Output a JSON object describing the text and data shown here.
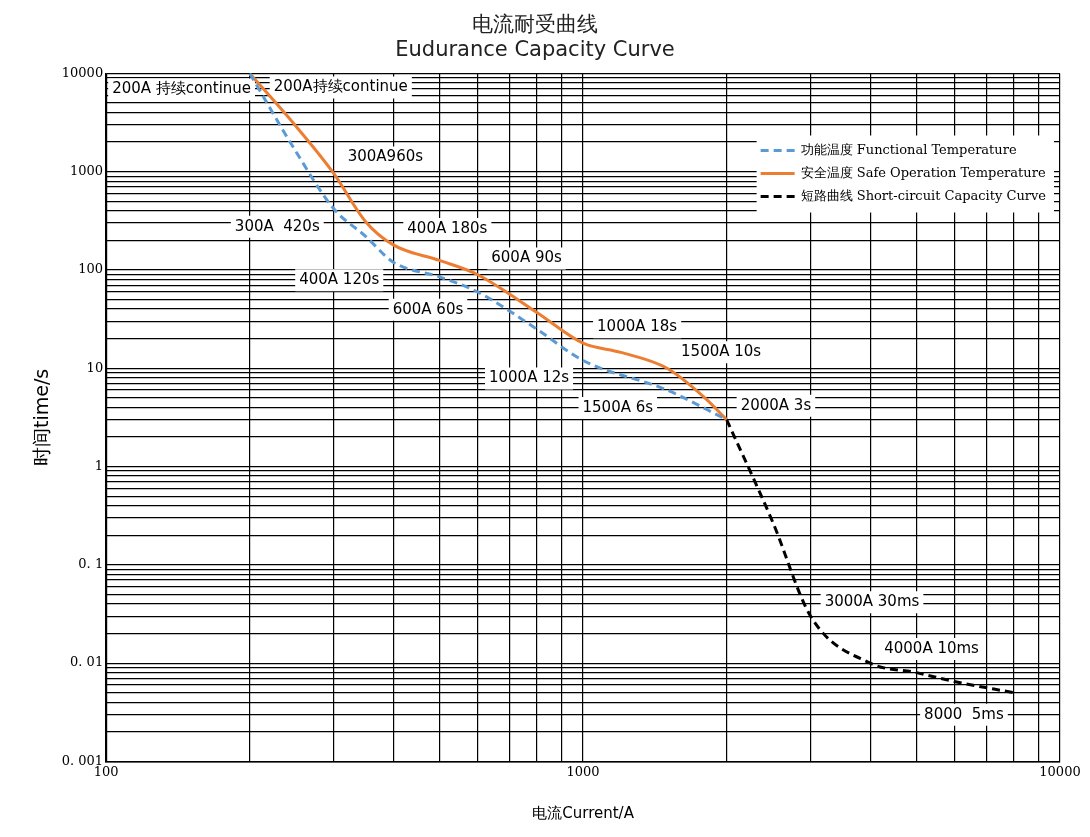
{
  "chart_data": {
    "type": "line",
    "title": [
      "电流耐受曲线",
      "Eudurance Capacity Curve"
    ],
    "xlabel": "电流Current/A",
    "ylabel": "时间time/s",
    "log": "xy",
    "grid": true,
    "legend": "top right",
    "marker": "none",
    "xlim": [
      100,
      10000
    ],
    "ylim": [
      0.001,
      10000
    ],
    "xticks": [
      100,
      {
        "value": 200,
        "label": null
      },
      {
        "value": 300,
        "label": null
      },
      {
        "value": 400,
        "label": null
      },
      {
        "value": 500,
        "label": null
      },
      {
        "value": 600,
        "label": null
      },
      {
        "value": 700,
        "label": null
      },
      {
        "value": 800,
        "label": null
      },
      {
        "value": 900,
        "label": null
      },
      1000,
      {
        "value": 2000,
        "label": null
      },
      {
        "value": 3000,
        "label": null
      },
      {
        "value": 4000,
        "label": null
      },
      {
        "value": 5000,
        "label": null
      },
      {
        "value": 6000,
        "label": null
      },
      {
        "value": 7000,
        "label": null
      },
      {
        "value": 8000,
        "label": null
      },
      {
        "value": 9000,
        "label": null
      },
      10000
    ],
    "yticks": [
      {
        "value": 0.001,
        "label": "0. 001"
      },
      {
        "value": 0.002,
        "label": null
      },
      {
        "value": 0.003,
        "label": null
      },
      {
        "value": 0.004,
        "label": null
      },
      {
        "value": 0.005,
        "label": null
      },
      {
        "value": 0.006,
        "label": null
      },
      {
        "value": 0.007,
        "label": null
      },
      {
        "value": 0.008,
        "label": null
      },
      {
        "value": 0.009,
        "label": null
      },
      {
        "value": 0.01,
        "label": "0. 01"
      },
      {
        "value": 0.02,
        "label": null
      },
      {
        "value": 0.03,
        "label": null
      },
      {
        "value": 0.04,
        "label": null
      },
      {
        "value": 0.05,
        "label": null
      },
      {
        "value": 0.06,
        "label": null
      },
      {
        "value": 0.07,
        "label": null
      },
      {
        "value": 0.08,
        "label": null
      },
      {
        "value": 0.09,
        "label": null
      },
      {
        "value": 0.1,
        "label": "0. 1"
      },
      {
        "value": 0.2,
        "label": null
      },
      {
        "value": 0.3,
        "label": null
      },
      {
        "value": 0.4,
        "label": null
      },
      {
        "value": 0.5,
        "label": null
      },
      {
        "value": 0.6,
        "label": null
      },
      {
        "value": 0.7,
        "label": null
      },
      {
        "value": 0.8,
        "label": null
      },
      {
        "value": 0.9,
        "label": null
      },
      1,
      {
        "value": 2,
        "label": null
      },
      {
        "value": 3,
        "label": null
      },
      {
        "value": 4,
        "label": null
      },
      {
        "value": 5,
        "label": null
      },
      {
        "value": 6,
        "label": null
      },
      {
        "value": 7,
        "label": null
      },
      {
        "value": 8,
        "label": null
      },
      {
        "value": 9,
        "label": null
      },
      10,
      {
        "value": 20,
        "label": null
      },
      {
        "value": 30,
        "label": null
      },
      {
        "value": 40,
        "label": null
      },
      {
        "value": 50,
        "label": null
      },
      {
        "value": 60,
        "label": null
      },
      {
        "value": 70,
        "label": null
      },
      {
        "value": 80,
        "label": null
      },
      {
        "value": 90,
        "label": null
      },
      100,
      {
        "value": 200,
        "label": null
      },
      {
        "value": 300,
        "label": null
      },
      {
        "value": 400,
        "label": null
      },
      {
        "value": 500,
        "label": null
      },
      {
        "value": 600,
        "label": null
      },
      {
        "value": 700,
        "label": null
      },
      {
        "value": 800,
        "label": null
      },
      {
        "value": 900,
        "label": null
      },
      1000,
      {
        "value": 2000,
        "label": null
      },
      {
        "value": 3000,
        "label": null
      },
      {
        "value": 4000,
        "label": null
      },
      {
        "value": 5000,
        "label": null
      },
      {
        "value": 6000,
        "label": null
      },
      {
        "value": 7000,
        "label": null
      },
      {
        "value": 8000,
        "label": null
      },
      {
        "value": 9000,
        "label": null
      },
      10000
    ],
    "series": [
      {
        "name": "功能温度 Functional Temperature",
        "color": "#5b9bd5",
        "line_style": "dashed",
        "x": [
          200,
          250,
          300,
          350,
          400,
          500,
          600,
          800,
          1000,
          1500,
          2000
        ],
        "values": [
          10000,
          1600,
          420,
          220,
          120,
          85,
          60,
          25,
          12,
          6,
          3
        ]
      },
      {
        "name": "安全温度 Safe Operation Temperature",
        "color": "#ed7d31",
        "line_style": "solid",
        "x": [
          200,
          250,
          300,
          350,
          400,
          500,
          600,
          800,
          1000,
          1200,
          1500,
          1800,
          2000
        ],
        "values": [
          10000,
          2900,
          960,
          310,
          180,
          125,
          90,
          37,
          18,
          14.5,
          10,
          5,
          3
        ]
      },
      {
        "name": "短路曲线 Short-circuit Capacity Curve",
        "color": "#000000",
        "line_style": "dashed",
        "x": [
          2000,
          2500,
          3000,
          4000,
          5000,
          6000,
          8000
        ],
        "values": [
          3,
          0.27,
          0.03,
          0.01,
          0.008,
          0.0065,
          0.005
        ]
      }
    ],
    "annotations": [
      {
        "text": "200A持续continue",
        "x": 200,
        "y": 10000
      },
      {
        "text": "200A 持续continue",
        "x": 200,
        "y": 10000
      },
      {
        "text": "300A960s",
        "x": 300,
        "y": 960
      },
      {
        "text": "400A 180s",
        "x": 400,
        "y": 180
      },
      {
        "text": "300A  420s",
        "x": 300,
        "y": 420
      },
      {
        "text": "600A 90s",
        "x": 600,
        "y": 90
      },
      {
        "text": "400A 120s",
        "x": 400,
        "y": 120
      },
      {
        "text": "1000A 18s",
        "x": 1000,
        "y": 18
      },
      {
        "text": "600A 60s",
        "x": 600,
        "y": 60
      },
      {
        "text": "1500A 10s",
        "x": 1500,
        "y": 10
      },
      {
        "text": "1000A 12s",
        "x": 1000,
        "y": 12
      },
      {
        "text": "2000A 3s",
        "x": 2000,
        "y": 3
      },
      {
        "text": "1500A 6s",
        "x": 1500,
        "y": 6
      },
      {
        "text": "3000A 30ms",
        "x": 3000,
        "y": 0.03
      },
      {
        "text": "4000A 10ms",
        "x": 4000,
        "y": 0.01
      },
      {
        "text": "8000  5ms",
        "x": 8000,
        "y": 0.005
      }
    ]
  }
}
